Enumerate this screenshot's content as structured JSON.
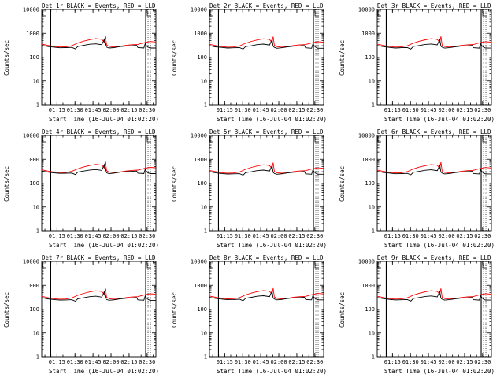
{
  "chart_data": {
    "type": "line",
    "shared": {
      "xlabel": "Start Time (16-Jul-04 01:02:20)",
      "ylabel": "Counts/sec",
      "x_ticks": [
        "01:15",
        "01:30",
        "01:45",
        "02:00",
        "02:15",
        "02:30"
      ],
      "x_tick_minutes": [
        12.67,
        27.67,
        42.67,
        57.67,
        72.67,
        87.67
      ],
      "xlim_minutes": [
        0,
        95
      ],
      "y_scale": "log",
      "ylim": [
        1,
        10000
      ],
      "y_ticks": [
        "1",
        "10",
        "100",
        "1000",
        "10000"
      ],
      "y_tick_values": [
        1,
        10,
        100,
        1000,
        10000
      ],
      "vertical_markers_minutes": [
        7.5,
        86.5
      ],
      "series_colors": {
        "events": "#000000",
        "lld": "#ff0000"
      },
      "events_x_minutes": [
        0,
        5,
        10,
        15,
        20,
        25,
        28,
        30,
        35,
        40,
        45,
        50,
        52,
        53,
        54,
        56,
        60,
        65,
        70,
        75,
        79,
        80,
        85,
        86,
        88,
        90,
        95
      ],
      "lld_x_minutes": [
        0,
        5,
        10,
        15,
        20,
        25,
        30,
        35,
        40,
        45,
        50,
        52,
        53,
        54,
        56,
        60,
        65,
        70,
        75,
        80,
        85,
        90,
        95
      ]
    },
    "panels": [
      {
        "title": "Det_1r BLACK = Events, RED = LLD",
        "events_values": [
          310,
          280,
          260,
          245,
          250,
          255,
          220,
          280,
          310,
          345,
          360,
          330,
          560,
          290,
          260,
          240,
          250,
          275,
          290,
          300,
          310,
          250,
          240,
          360,
          270,
          240,
          240
        ],
        "lld_values": [
          350,
          310,
          280,
          265,
          270,
          300,
          390,
          470,
          540,
          600,
          560,
          420,
          750,
          320,
          280,
          265,
          280,
          310,
          330,
          340,
          400,
          450,
          430
        ]
      },
      {
        "title": "Det_2r BLACK = Events, RED = LLD",
        "events_values": [
          300,
          270,
          255,
          240,
          245,
          250,
          215,
          275,
          300,
          335,
          350,
          320,
          540,
          285,
          255,
          235,
          245,
          270,
          285,
          295,
          305,
          245,
          235,
          350,
          265,
          235,
          235
        ],
        "lld_values": [
          345,
          305,
          275,
          260,
          265,
          295,
          380,
          460,
          530,
          590,
          550,
          410,
          730,
          315,
          275,
          260,
          275,
          305,
          325,
          335,
          390,
          440,
          420
        ]
      },
      {
        "title": "Det_3r BLACK = Events, RED = LLD",
        "events_values": [
          305,
          275,
          255,
          240,
          248,
          252,
          218,
          278,
          305,
          340,
          355,
          325,
          550,
          288,
          258,
          238,
          248,
          272,
          288,
          298,
          308,
          248,
          238,
          355,
          268,
          238,
          238
        ],
        "lld_values": [
          348,
          308,
          278,
          262,
          268,
          298,
          385,
          465,
          535,
          595,
          555,
          415,
          740,
          318,
          278,
          262,
          278,
          308,
          328,
          338,
          395,
          445,
          425
        ]
      },
      {
        "title": "Det_4r BLACK = Events, RED = LLD",
        "events_values": [
          320,
          290,
          270,
          255,
          258,
          262,
          228,
          290,
          320,
          355,
          370,
          340,
          600,
          300,
          270,
          250,
          260,
          285,
          300,
          310,
          320,
          260,
          250,
          370,
          280,
          250,
          250
        ],
        "lld_values": [
          360,
          320,
          290,
          275,
          280,
          310,
          400,
          480,
          550,
          610,
          570,
          430,
          780,
          330,
          290,
          275,
          290,
          320,
          340,
          350,
          410,
          460,
          440
        ]
      },
      {
        "title": "Det_5r BLACK = Events, RED = LLD",
        "events_values": [
          300,
          272,
          252,
          238,
          244,
          248,
          214,
          274,
          300,
          335,
          350,
          320,
          540,
          282,
          252,
          234,
          244,
          268,
          284,
          294,
          304,
          244,
          234,
          350,
          264,
          234,
          234
        ],
        "lld_values": [
          340,
          302,
          272,
          258,
          264,
          292,
          378,
          458,
          528,
          588,
          548,
          408,
          725,
          312,
          272,
          258,
          272,
          302,
          322,
          332,
          388,
          438,
          418
        ]
      },
      {
        "title": "Det_6r BLACK = Events, RED = LLD",
        "events_values": [
          310,
          280,
          262,
          246,
          250,
          256,
          222,
          282,
          312,
          346,
          362,
          332,
          565,
          292,
          262,
          242,
          252,
          276,
          292,
          302,
          312,
          252,
          242,
          362,
          272,
          242,
          242
        ],
        "lld_values": [
          352,
          312,
          282,
          266,
          272,
          302,
          392,
          472,
          542,
          602,
          562,
          422,
          755,
          322,
          282,
          266,
          282,
          312,
          332,
          342,
          402,
          452,
          432
        ]
      },
      {
        "title": "Det_7r BLACK = Events, RED = LLD",
        "events_values": [
          300,
          270,
          252,
          238,
          242,
          248,
          214,
          272,
          300,
          334,
          348,
          318,
          535,
          282,
          252,
          234,
          244,
          268,
          284,
          294,
          304,
          244,
          234,
          348,
          262,
          232,
          232
        ],
        "lld_values": [
          342,
          304,
          274,
          260,
          265,
          294,
          380,
          460,
          530,
          590,
          550,
          410,
          728,
          314,
          274,
          260,
          274,
          304,
          324,
          334,
          390,
          440,
          420
        ]
      },
      {
        "title": "Det_8r BLACK = Events, RED = LLD",
        "events_values": [
          312,
          282,
          262,
          248,
          252,
          258,
          224,
          284,
          314,
          348,
          364,
          334,
          570,
          294,
          264,
          244,
          254,
          278,
          294,
          304,
          314,
          254,
          244,
          364,
          274,
          244,
          244
        ],
        "lld_values": [
          354,
          314,
          284,
          268,
          274,
          304,
          394,
          474,
          544,
          604,
          564,
          424,
          760,
          324,
          284,
          268,
          284,
          314,
          334,
          344,
          404,
          454,
          434
        ]
      },
      {
        "title": "Det_9r BLACK = Events, RED = LLD",
        "events_values": [
          305,
          276,
          256,
          242,
          246,
          252,
          218,
          278,
          306,
          340,
          356,
          326,
          552,
          288,
          258,
          238,
          248,
          272,
          288,
          298,
          308,
          248,
          238,
          356,
          268,
          238,
          238
        ],
        "lld_values": [
          346,
          306,
          276,
          262,
          268,
          296,
          384,
          464,
          534,
          594,
          554,
          414,
          738,
          318,
          278,
          262,
          278,
          306,
          326,
          336,
          394,
          444,
          424
        ]
      }
    ]
  }
}
